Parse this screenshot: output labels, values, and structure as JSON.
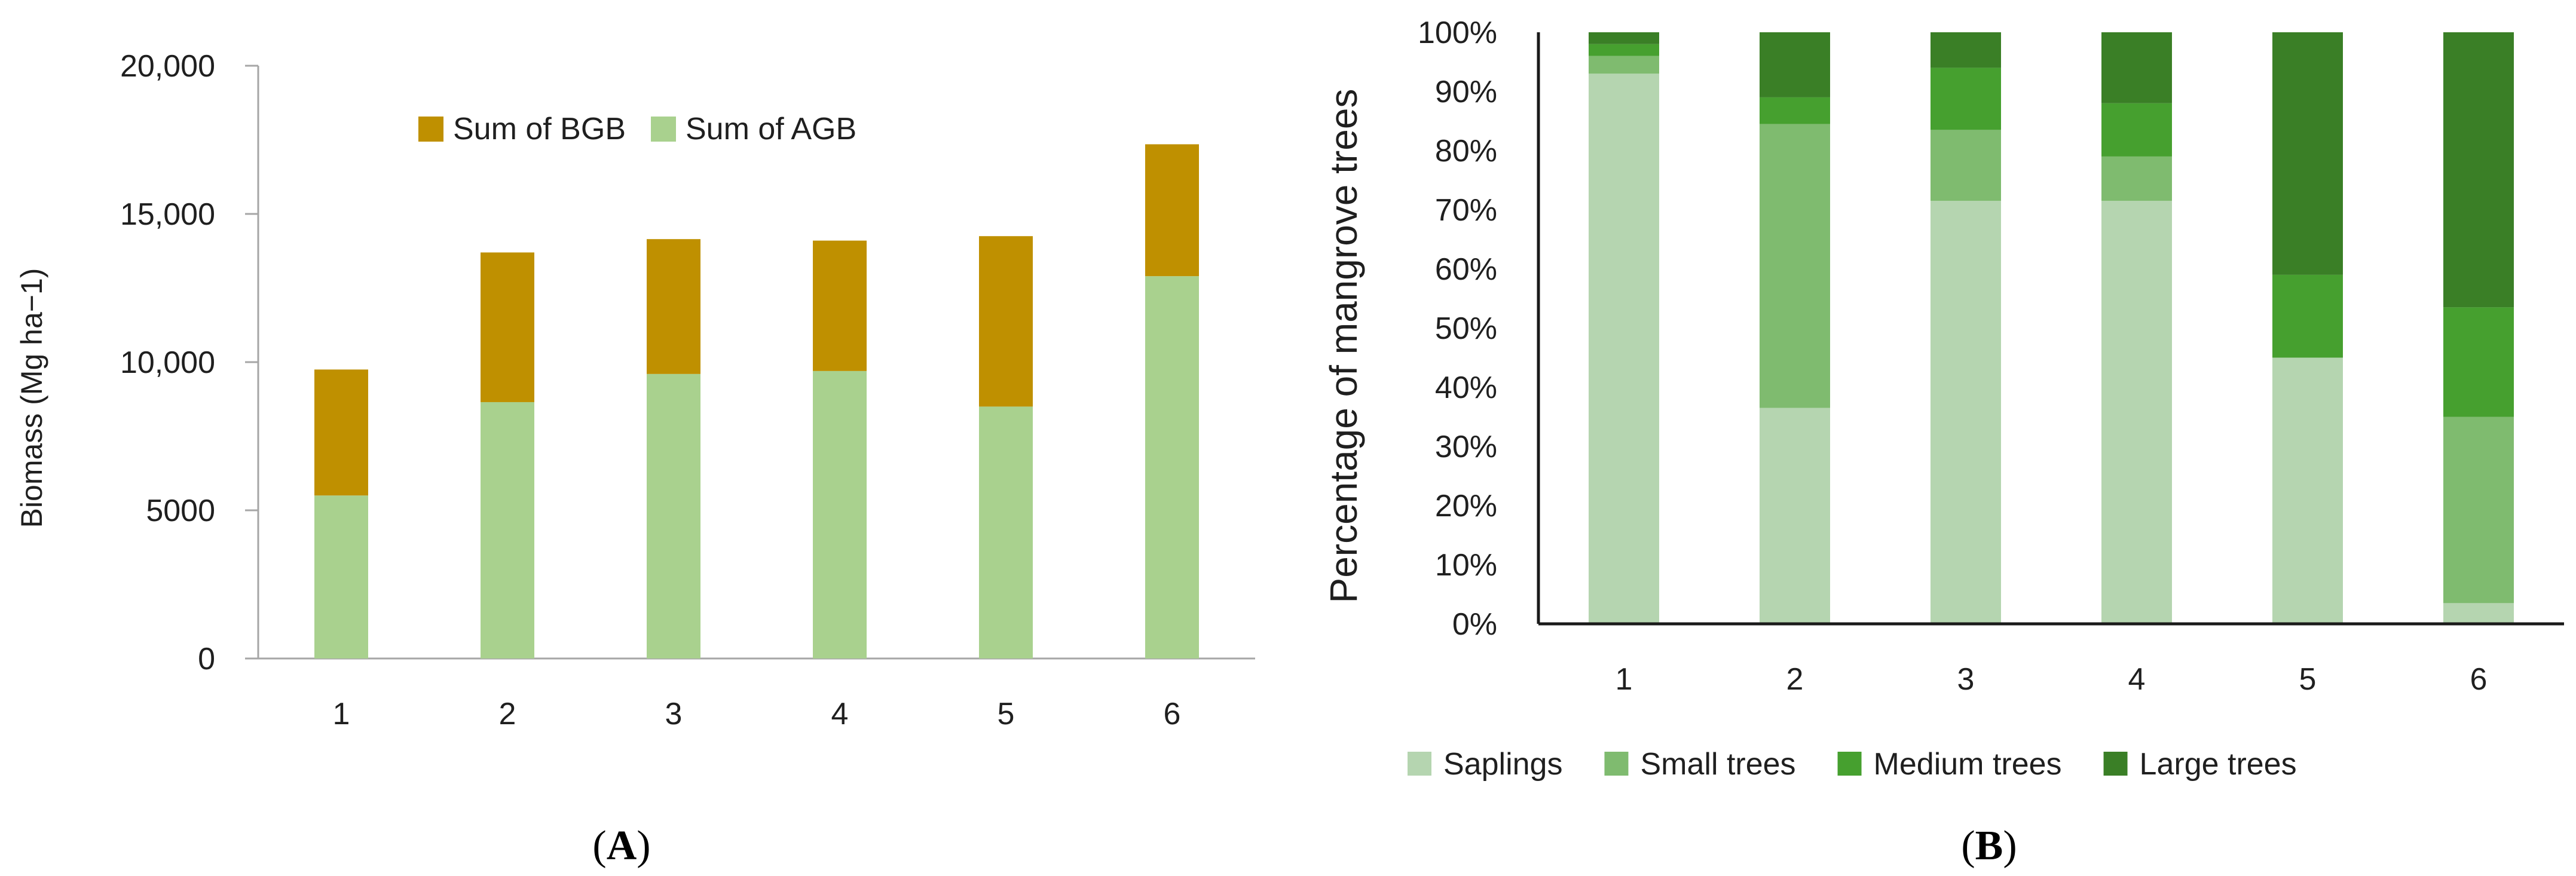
{
  "panel_a_caption": {
    "open": "(",
    "letter": "A",
    "close": ")"
  },
  "panel_b_caption": {
    "open": "(",
    "letter": "B",
    "close": ")"
  },
  "chart_data": [
    {
      "type": "bar",
      "stacked": true,
      "title": "",
      "xlabel": "",
      "ylabel": "Biomass (Mg ha−1)",
      "categories": [
        "1",
        "2",
        "3",
        "4",
        "5",
        "6"
      ],
      "ylim": [
        0,
        20000
      ],
      "yticks": [
        0,
        5000,
        10000,
        15000,
        20000
      ],
      "ytick_labels": [
        "0",
        "5000",
        "10,000",
        "15,000",
        "20,000"
      ],
      "grid": false,
      "legend_position": "top",
      "series": [
        {
          "name": "Sum of AGB",
          "color": "#a9d18e",
          "values": [
            5500,
            8650,
            9600,
            9700,
            8500,
            12900
          ]
        },
        {
          "name": "Sum of BGB",
          "color": "#bf9000",
          "values": [
            4250,
            5050,
            4550,
            4400,
            5750,
            4450
          ]
        }
      ],
      "legend_order": [
        1,
        0
      ]
    },
    {
      "type": "bar",
      "stacked": true,
      "percent": true,
      "title": "",
      "xlabel": "",
      "ylabel": "Percentage of mangrove trees",
      "categories": [
        "1",
        "2",
        "3",
        "4",
        "5",
        "6"
      ],
      "ylim": [
        0,
        100
      ],
      "yticks": [
        0,
        10,
        20,
        30,
        40,
        50,
        60,
        70,
        80,
        90,
        100
      ],
      "ytick_labels": [
        "0%",
        "10%",
        "20%",
        "30%",
        "40%",
        "50%",
        "60%",
        "70%",
        "80%",
        "90%",
        "100%"
      ],
      "grid": false,
      "legend_position": "bottom",
      "series": [
        {
          "name": "Saplings",
          "color": "#b5d5b0",
          "values": [
            93,
            36.5,
            71.5,
            71.5,
            45,
            3.5
          ]
        },
        {
          "name": "Small trees",
          "color": "#7fbb6f",
          "values": [
            3,
            48,
            12,
            7.5,
            0,
            31.5
          ]
        },
        {
          "name": "Medium trees",
          "color": "#46a02f",
          "values": [
            2,
            4.5,
            10.5,
            9,
            14,
            18.5
          ]
        },
        {
          "name": "Large trees",
          "color": "#3a7f26",
          "values": [
            2,
            11,
            6,
            12,
            41,
            46.5
          ]
        }
      ],
      "legend_order": [
        0,
        1,
        2,
        3
      ]
    }
  ]
}
